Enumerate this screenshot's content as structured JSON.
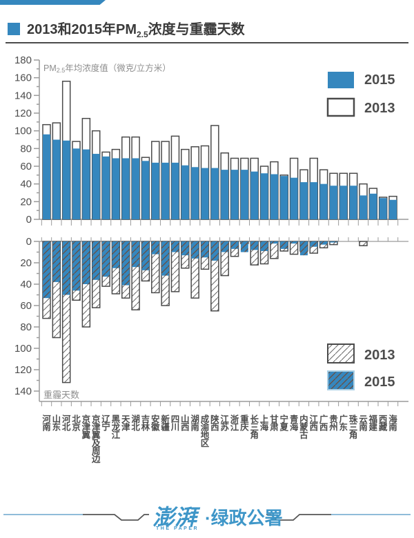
{
  "header": {
    "title": {
      "pre": "2013和2015年PM",
      "sub": "2.5",
      "post": "浓度与重霾天数"
    }
  },
  "colors": {
    "blue": "#3587BE",
    "dark": "#4A4A4A",
    "gray_label": "#8E8E8E",
    "axis": "#9A9A9A",
    "tick_text": "#4D4D4D",
    "hatch_on_white": "#666666",
    "hatch_on_blue": "#6E4B39",
    "legend_blue_border": "#A9CFE5",
    "footer_line_blue": "#8FBCD9",
    "footer_line_dark": "#555555",
    "logo_blue": "#3E96C8"
  },
  "chart_data": {
    "type": "bar",
    "categories": [
      "河南",
      "山东",
      "河北",
      "北京",
      "京津翼",
      "京津翼及周边",
      "辽宁",
      "黑龙江",
      "天津",
      "湖北",
      "吉林",
      "安徽",
      "新疆",
      "四川",
      "山西",
      "湖南",
      "成渝地区",
      "陕西",
      "江苏",
      "浙江",
      "重庆",
      "长三角",
      "上海",
      "甘肃",
      "宁夏",
      "青海",
      "内蒙古",
      "江西",
      "广西",
      "贵州",
      "广东",
      "珠三角",
      "云南",
      "福建",
      "西藏",
      "海南"
    ],
    "charts": [
      {
        "title": "PM2.5年均浓度值（微克/立方米）",
        "title_parts": {
          "pre": "PM",
          "sub": "2.5",
          "post": "年均浓度值（微克/立方米）"
        },
        "ylim": [
          0,
          180
        ],
        "ytick_step": 20,
        "ytick_minor": 10,
        "grid": false,
        "legend_position": "top-right",
        "series": [
          {
            "name": "2015",
            "style": "solid-blue",
            "values": [
              96,
              90,
              89,
              80,
              79,
              74,
              71,
              69,
              69,
              69,
              66,
              64,
              64,
              64,
              61,
              59,
              58,
              58,
              56,
              56,
              56,
              54,
              52,
              51,
              49,
              47,
              42,
              42,
              40,
              38,
              38,
              38,
              27,
              29,
              24,
              22
            ]
          },
          {
            "name": "2013",
            "style": "white-outline",
            "values": [
              107,
              109,
              156,
              88,
              114,
              100,
              76,
              79,
              93,
              93,
              70,
              88,
              88,
              94,
              79,
              82,
              83,
              106,
              75,
              69,
              69,
              69,
              60,
              65,
              50,
              69,
              56,
              69,
              56,
              52,
              52,
              52,
              40,
              35,
              25,
              26
            ]
          }
        ]
      },
      {
        "title": "重霾天数",
        "ylim": [
          0,
          140
        ],
        "inverted": true,
        "ytick_step": 20,
        "ytick_minor": 10,
        "grid": false,
        "legend_position": "bottom-right",
        "series": [
          {
            "name": "2013",
            "style": "white-hatched",
            "values": [
              72,
              90,
              132,
              55,
              80,
              62,
              42,
              49,
              53,
              64,
              37,
              48,
              60,
              47,
              25,
              53,
              26,
              65,
              32,
              14,
              2,
              22,
              21,
              16,
              9,
              12,
              9,
              11,
              6,
              3,
              0,
              0,
              4,
              0,
              0,
              0
            ]
          },
          {
            "name": "2015",
            "style": "blue-hatched",
            "values": [
              53,
              38,
              50,
              46,
              40,
              36,
              33,
              25,
              41,
              24,
              27,
              12,
              32,
              10,
              13,
              16,
              15,
              18,
              10,
              7,
              10,
              8,
              9,
              2,
              7,
              2,
              13,
              5,
              3,
              1,
              0,
              0,
              0,
              0,
              0,
              0
            ]
          }
        ]
      }
    ]
  },
  "footer": {
    "logo_zh": "澎湃",
    "logo_en": "THE PAPER",
    "dot": "·",
    "logo_rest": "绿政公署"
  }
}
